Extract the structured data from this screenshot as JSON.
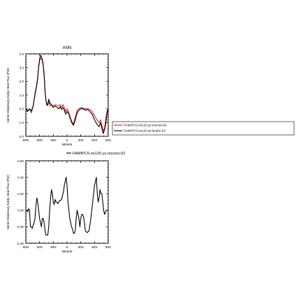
{
  "chart_data": [
    {
      "type": "line",
      "title": "ANN",
      "xlabel": "latitude",
      "ylabel": "Merid Stationary Eddy Heat Flux (PW)",
      "x_ticks": [
        90,
        60,
        30,
        0,
        -30,
        -60,
        -90
      ],
      "x_tick_labels": [
        "90N",
        "60N",
        "30N",
        "0",
        "30S",
        "60S",
        "90S"
      ],
      "xlim": [
        90,
        -90
      ],
      "ylim": [
        -2.0,
        4.0
      ],
      "y_ticks": [
        -2.0,
        -1.0,
        0.0,
        1.0,
        2.0,
        3.0,
        4.0
      ],
      "y_tick_labels": [
        "-2.0",
        "-1.0",
        "0.0",
        "1.0",
        "2.0",
        "3.0",
        "4.0"
      ],
      "grid": false,
      "legend": "right",
      "series": [
        {
          "name": "FAMIPC5.ne120.ys.noconv.02",
          "color": "#d62020",
          "x": [
            90,
            86,
            82,
            78,
            74,
            70,
            67,
            64,
            62,
            60,
            58,
            56,
            54,
            52,
            50,
            48,
            46,
            44,
            42,
            40,
            37,
            34,
            30,
            26,
            22,
            18,
            15,
            12,
            9,
            6,
            3,
            0,
            -3,
            -6,
            -10,
            -14,
            -18,
            -22,
            -26,
            -30,
            -35,
            -40,
            -45,
            -50,
            -55,
            -60,
            -65,
            -70,
            -73,
            -76,
            -79,
            -82,
            -85,
            -88,
            -90
          ],
          "y": [
            0.0,
            -0.15,
            0.0,
            -0.3,
            0.2,
            1.0,
            1.5,
            2.2,
            3.0,
            3.5,
            3.7,
            3.6,
            3.5,
            3.1,
            2.3,
            1.2,
            0.6,
            0.4,
            0.3,
            0.5,
            0.2,
            0.3,
            0.2,
            0.3,
            0.25,
            0.2,
            0.3,
            0.1,
            0.3,
            0.1,
            -0.2,
            0.0,
            -0.2,
            -0.5,
            -0.9,
            -1.1,
            -0.6,
            -0.1,
            0.0,
            0.1,
            0.05,
            0.0,
            0.0,
            -0.05,
            -0.2,
            -0.5,
            -0.8,
            -1.0,
            -0.8,
            -1.2,
            -1.6,
            -1.4,
            -0.6,
            -0.1,
            0.0
          ]
        },
        {
          "name": "FAMIPC5.ne120.ys.lau5m.02",
          "color": "#000000",
          "x": [
            90,
            86,
            82,
            78,
            74,
            70,
            67,
            64,
            62,
            60,
            58,
            56,
            54,
            52,
            50,
            48,
            46,
            44,
            42,
            40,
            37,
            34,
            30,
            26,
            22,
            18,
            15,
            12,
            9,
            6,
            3,
            0,
            -3,
            -6,
            -10,
            -14,
            -18,
            -22,
            -26,
            -30,
            -35,
            -40,
            -45,
            -50,
            -55,
            -60,
            -65,
            -70,
            -73,
            -76,
            -79,
            -82,
            -85,
            -88,
            -90
          ],
          "y": [
            0.0,
            -0.2,
            0.0,
            -0.15,
            0.2,
            1.1,
            1.6,
            2.3,
            3.1,
            3.6,
            3.9,
            3.8,
            3.6,
            3.2,
            2.5,
            1.3,
            0.6,
            0.25,
            0.3,
            0.7,
            0.4,
            0.3,
            0.1,
            0.2,
            0.1,
            0.0,
            0.15,
            -0.05,
            0.1,
            -0.1,
            -0.4,
            -0.2,
            -0.3,
            -0.6,
            -1.0,
            -1.2,
            -0.8,
            -0.3,
            -0.1,
            0.0,
            0.0,
            -0.1,
            -0.05,
            -0.2,
            -0.4,
            -0.8,
            -1.1,
            -1.3,
            -1.0,
            -1.4,
            -1.8,
            -1.5,
            -1.0,
            -0.2,
            0.0
          ]
        }
      ]
    },
    {
      "type": "line",
      "title": "",
      "xlabel": "latitude",
      "ylabel": "Merid Stationary Eddy Heat Flux (PW)",
      "x_ticks": [
        90,
        60,
        30,
        0,
        -30,
        -60,
        -90
      ],
      "x_tick_labels": [
        "90N",
        "60N",
        "30N",
        "0",
        "30S",
        "60S",
        "90S"
      ],
      "xlim": [
        90,
        -90
      ],
      "ylim": [
        -0.4,
        0.6
      ],
      "y_ticks": [
        -0.4,
        -0.2,
        0.0,
        0.2,
        0.4,
        0.6
      ],
      "y_tick_labels": [
        "-0.40",
        "-0.20",
        "0.00",
        "0.20",
        "0.40",
        "0.60"
      ],
      "grid": false,
      "legend": "top",
      "series": [
        {
          "name": "FAMIPC5.ne120.ys.noconv.02",
          "color": "#000000",
          "x": [
            90,
            88,
            86,
            84,
            82,
            80,
            78,
            76,
            74,
            72,
            70,
            68,
            66,
            64,
            62,
            60,
            58,
            56,
            54,
            52,
            50,
            48,
            46,
            44,
            42,
            40,
            38,
            36,
            34,
            32,
            30,
            28,
            26,
            24,
            22,
            20,
            18,
            16,
            14,
            12,
            10,
            8,
            6,
            4,
            2,
            0,
            -2,
            -4,
            -6,
            -8,
            -10,
            -12,
            -14,
            -16,
            -18,
            -20,
            -22,
            -24,
            -26,
            -28,
            -30,
            -32,
            -34,
            -36,
            -38,
            -40,
            -44,
            -48,
            -52,
            -56,
            -60,
            -64,
            -66,
            -68,
            -70,
            -72,
            -74,
            -76,
            -78,
            -80,
            -82,
            -84,
            -86,
            -88,
            -90
          ],
          "y": [
            0.0,
            0.0,
            -0.02,
            0.02,
            0.0,
            -0.2,
            -0.2,
            -0.22,
            -0.18,
            -0.15,
            -0.1,
            0.05,
            0.15,
            0.1,
            0.0,
            -0.1,
            -0.15,
            -0.2,
            -0.1,
            -0.1,
            -0.15,
            -0.25,
            -0.3,
            -0.3,
            -0.3,
            -0.2,
            0.0,
            0.15,
            0.25,
            0.2,
            0.1,
            0.07,
            0.13,
            0.1,
            0.1,
            0.08,
            0.1,
            0.12,
            0.12,
            0.13,
            0.18,
            0.22,
            0.3,
            0.35,
            0.4,
            0.3,
            0.1,
            0.0,
            -0.1,
            -0.15,
            -0.2,
            -0.23,
            -0.28,
            -0.28,
            -0.25,
            -0.1,
            0.0,
            -0.05,
            -0.1,
            -0.2,
            -0.1,
            -0.05,
            -0.05,
            -0.08,
            -0.15,
            -0.25,
            -0.27,
            -0.25,
            -0.1,
            0.1,
            0.3,
            0.4,
            0.2,
            0.1,
            0.15,
            0.25,
            0.2,
            0.2,
            0.1,
            0.0,
            -0.05,
            -0.02,
            0.0,
            0.0,
            0.0
          ]
        }
      ]
    }
  ]
}
